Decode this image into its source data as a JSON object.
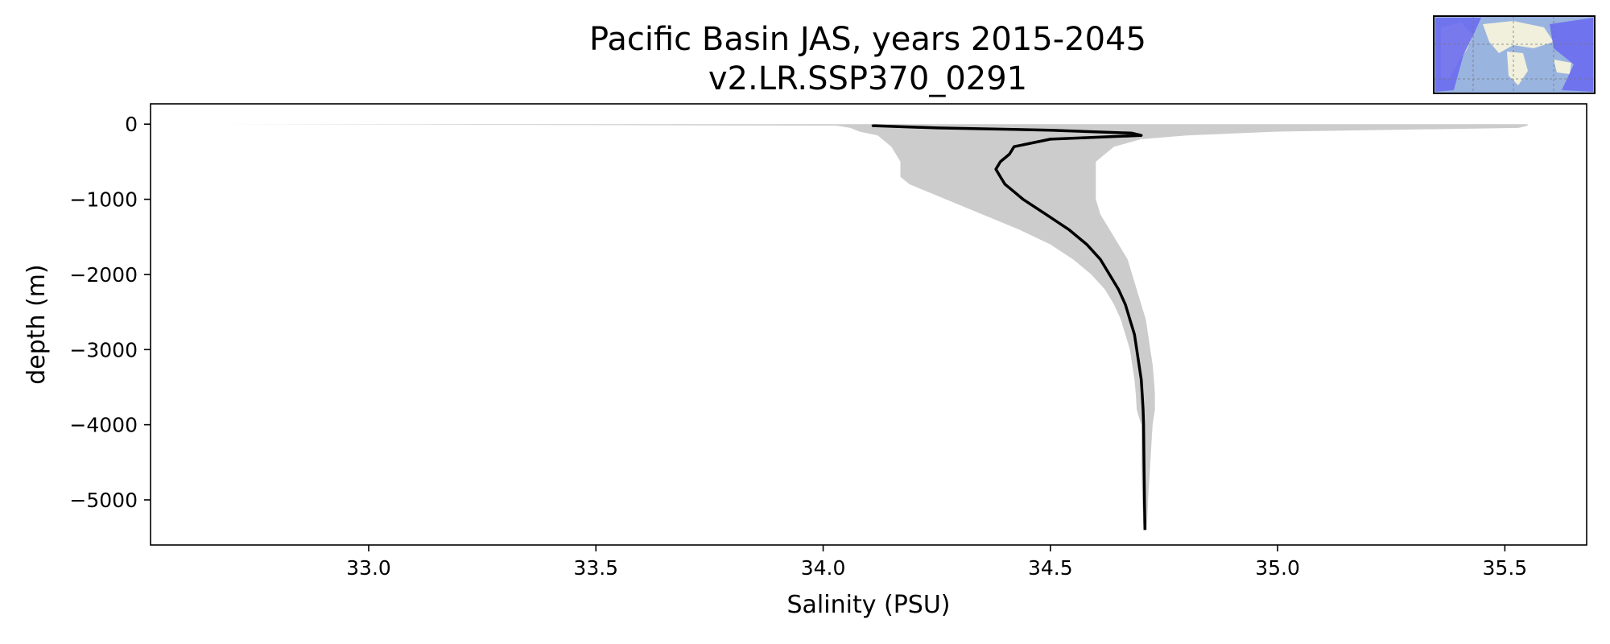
{
  "chart_data": {
    "type": "line",
    "title": "Pacific Basin JAS, years 2015-2045",
    "subtitle": "v2.LR.SSP370_0291",
    "xlabel": "Salinity (PSU)",
    "ylabel": "depth (m)",
    "xlim": [
      32.52,
      35.68
    ],
    "ylim": [
      -5600,
      270
    ],
    "xticks": [
      33.0,
      33.5,
      34.0,
      34.5,
      35.0,
      35.5
    ],
    "xtick_labels": [
      "33.0",
      "33.5",
      "34.0",
      "34.5",
      "35.0",
      "35.5"
    ],
    "yticks": [
      0,
      -1000,
      -2000,
      -3000,
      -4000,
      -5000
    ],
    "ytick_labels": [
      "0",
      "−1000",
      "−2000",
      "−3000",
      "−4000",
      "−5000"
    ],
    "grid": false,
    "colors": {
      "line": "#000000",
      "band": "#cccccc",
      "inset_ocean": "#6b6bf0",
      "inset_land": "#f0f0dc",
      "inset_sea": "#9ab4e0"
    },
    "series": [
      {
        "kind": "line",
        "depth": [
          -5,
          -20,
          -50,
          -80,
          -120,
          -150,
          -200,
          -300,
          -400,
          -500,
          -600,
          -700,
          -800,
          -900,
          -1000,
          -1200,
          -1400,
          -1600,
          -1800,
          -2000,
          -2200,
          -2400,
          -2600,
          -2800,
          -3000,
          -3200,
          -3400,
          -3600,
          -3800,
          -4000,
          -4500,
          -5000,
          -5400
        ],
        "salinity": [
          34.11,
          34.11,
          34.25,
          34.5,
          34.68,
          34.7,
          34.5,
          34.42,
          34.41,
          34.39,
          34.38,
          34.39,
          34.4,
          34.42,
          34.44,
          34.49,
          34.54,
          34.58,
          34.61,
          34.63,
          34.65,
          34.665,
          34.675,
          34.685,
          34.69,
          34.695,
          34.7,
          34.702,
          34.704,
          34.705,
          34.706,
          34.707,
          34.708
        ]
      },
      {
        "kind": "band",
        "depth": [
          0,
          -20,
          -50,
          -100,
          -150,
          -200,
          -300,
          -400,
          -500,
          -600,
          -700,
          -800,
          -900,
          -1000,
          -1200,
          -1400,
          -1600,
          -1800,
          -2000,
          -2200,
          -2400,
          -2600,
          -2800,
          -3000,
          -3200,
          -3400,
          -3600,
          -3800,
          -4000,
          -4500,
          -5000,
          -5400
        ],
        "lower": [
          32.68,
          34.03,
          34.06,
          34.08,
          34.12,
          34.13,
          34.15,
          34.16,
          34.17,
          34.17,
          34.17,
          34.19,
          34.23,
          34.27,
          34.35,
          34.43,
          34.5,
          34.55,
          34.59,
          34.62,
          34.64,
          34.655,
          34.665,
          34.675,
          34.68,
          34.685,
          34.688,
          34.69,
          34.7,
          34.7,
          34.702,
          34.705
        ],
        "upper": [
          35.55,
          35.55,
          35.53,
          35.0,
          34.8,
          34.7,
          34.64,
          34.62,
          34.6,
          34.6,
          34.6,
          34.6,
          34.6,
          34.6,
          34.61,
          34.63,
          34.65,
          34.67,
          34.68,
          34.69,
          34.7,
          34.71,
          34.715,
          34.72,
          34.725,
          34.728,
          34.73,
          34.73,
          34.725,
          34.72,
          34.715,
          34.712
        ]
      }
    ]
  }
}
